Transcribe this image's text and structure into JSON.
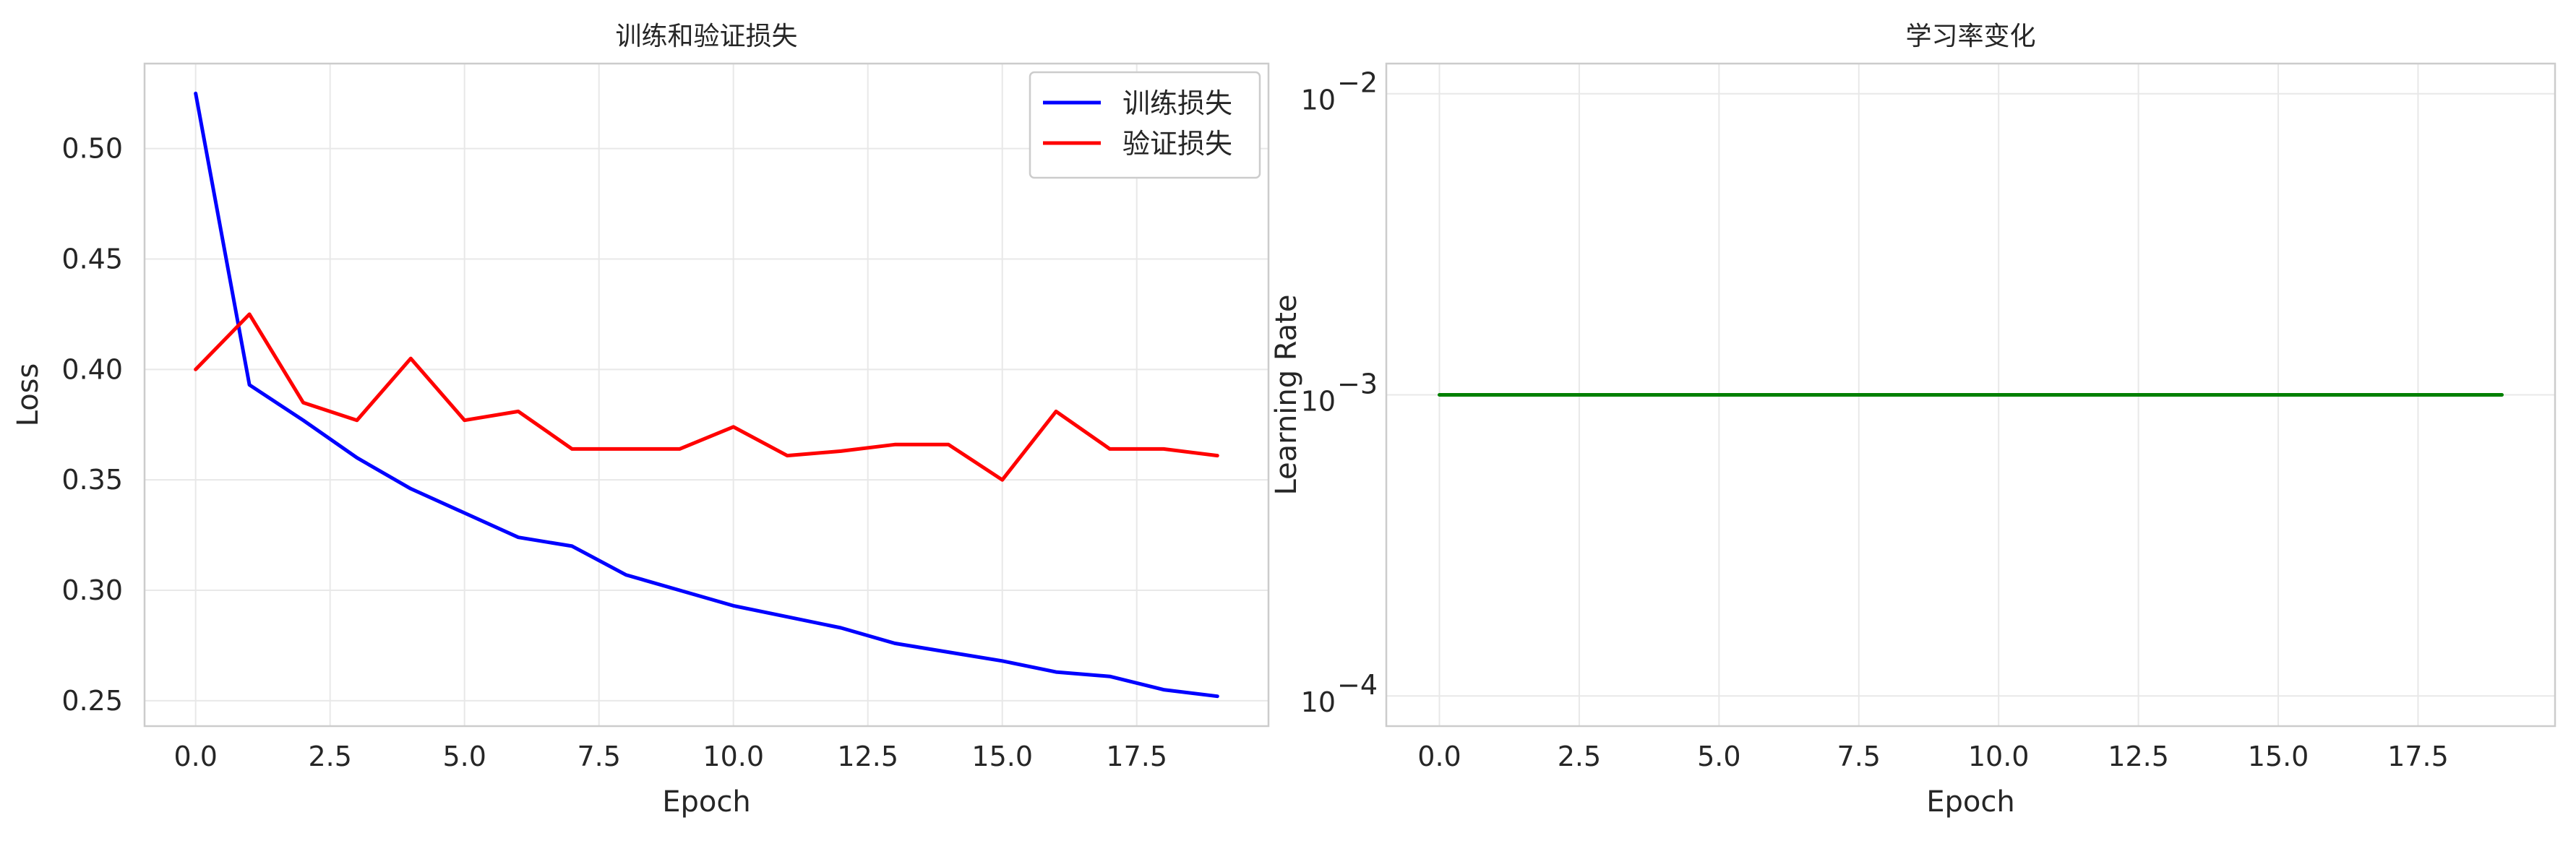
{
  "chart_data": [
    {
      "type": "line",
      "title": "训练和验证损失",
      "xlabel": "Epoch",
      "ylabel": "Loss",
      "xlim": [
        -0.95,
        19.95
      ],
      "ylim": [
        0.2385,
        0.5385
      ],
      "xticks": [
        0.0,
        2.5,
        5.0,
        7.5,
        10.0,
        12.5,
        15.0,
        17.5
      ],
      "xtick_labels": [
        "0.0",
        "2.5",
        "5.0",
        "7.5",
        "10.0",
        "12.5",
        "15.0",
        "17.5"
      ],
      "yticks": [
        0.25,
        0.3,
        0.35,
        0.4,
        0.45,
        0.5
      ],
      "ytick_labels": [
        "0.25",
        "0.30",
        "0.35",
        "0.40",
        "0.45",
        "0.50"
      ],
      "grid": true,
      "legend_position": "top-right",
      "x": [
        0,
        1,
        2,
        3,
        4,
        5,
        6,
        7,
        8,
        9,
        10,
        11,
        12,
        13,
        14,
        15,
        16,
        17,
        18,
        19
      ],
      "series": [
        {
          "name": "训练损失",
          "color": "#0000ff",
          "values": [
            0.525,
            0.393,
            0.377,
            0.36,
            0.346,
            0.335,
            0.324,
            0.32,
            0.307,
            0.3,
            0.293,
            0.288,
            0.283,
            0.276,
            0.272,
            0.268,
            0.263,
            0.261,
            0.255,
            0.252
          ]
        },
        {
          "name": "验证损失",
          "color": "#ff0000",
          "values": [
            0.4,
            0.425,
            0.385,
            0.377,
            0.405,
            0.377,
            0.381,
            0.364,
            0.364,
            0.364,
            0.374,
            0.361,
            0.363,
            0.366,
            0.366,
            0.35,
            0.381,
            0.364,
            0.364,
            0.361
          ]
        }
      ]
    },
    {
      "type": "line",
      "title": "学习率变化",
      "xlabel": "Epoch",
      "ylabel": "Learning Rate",
      "yscale": "log",
      "xlim": [
        -0.95,
        19.95
      ],
      "ylim": [
        7.94e-05,
        0.01259
      ],
      "xticks": [
        0.0,
        2.5,
        5.0,
        7.5,
        10.0,
        12.5,
        15.0,
        17.5
      ],
      "xtick_labels": [
        "0.0",
        "2.5",
        "5.0",
        "7.5",
        "10.0",
        "12.5",
        "15.0",
        "17.5"
      ],
      "yticks": [
        0.0001,
        0.001,
        0.01
      ],
      "ytick_labels": [
        {
          "base": "10",
          "exp": "−4"
        },
        {
          "base": "10",
          "exp": "−3"
        },
        {
          "base": "10",
          "exp": "−2"
        }
      ],
      "grid": true,
      "x": [
        0,
        1,
        2,
        3,
        4,
        5,
        6,
        7,
        8,
        9,
        10,
        11,
        12,
        13,
        14,
        15,
        16,
        17,
        18,
        19
      ],
      "series": [
        {
          "color": "#008000",
          "values": [
            0.001,
            0.001,
            0.001,
            0.001,
            0.001,
            0.001,
            0.001,
            0.001,
            0.001,
            0.001,
            0.001,
            0.001,
            0.001,
            0.001,
            0.001,
            0.001,
            0.001,
            0.001,
            0.001,
            0.001
          ]
        }
      ]
    }
  ]
}
